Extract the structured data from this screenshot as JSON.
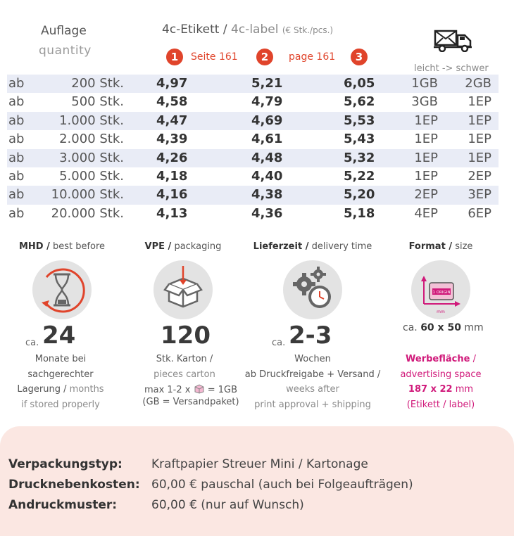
{
  "header": {
    "auflage": "Auflage",
    "quantity": "quantity",
    "label_de": "4c-Etikett",
    "slash": "/",
    "label_en": "4c-label",
    "unit": "(€ Stk./pcs.)",
    "badges": [
      {
        "num": "1",
        "text": "Seite 161"
      },
      {
        "num": "2",
        "text": "page 161"
      },
      {
        "num": "3",
        "text": ""
      }
    ],
    "shipping_caption": "leicht -> schwer",
    "truck_icon": "truck-envelope-icon"
  },
  "table": {
    "rows": [
      {
        "ab": "ab",
        "qty": "200 Stk.",
        "p1": "4,97",
        "p2": "5,21",
        "p3": "6,05",
        "s1": "1GB",
        "s2": "2GB"
      },
      {
        "ab": "ab",
        "qty": "500 Stk.",
        "p1": "4,58",
        "p2": "4,79",
        "p3": "5,62",
        "s1": "3GB",
        "s2": "1EP"
      },
      {
        "ab": "ab",
        "qty": "1.000 Stk.",
        "p1": "4,47",
        "p2": "4,69",
        "p3": "5,53",
        "s1": "1EP",
        "s2": "1EP"
      },
      {
        "ab": "ab",
        "qty": "2.000 Stk.",
        "p1": "4,39",
        "p2": "4,61",
        "p3": "5,43",
        "s1": "1EP",
        "s2": "1EP"
      },
      {
        "ab": "ab",
        "qty": "3.000 Stk.",
        "p1": "4,26",
        "p2": "4,48",
        "p3": "5,32",
        "s1": "1EP",
        "s2": "1EP"
      },
      {
        "ab": "ab",
        "qty": "5.000 Stk.",
        "p1": "4,18",
        "p2": "4,40",
        "p3": "5,22",
        "s1": "1EP",
        "s2": "2EP"
      },
      {
        "ab": "ab",
        "qty": "10.000 Stk.",
        "p1": "4,16",
        "p2": "4,38",
        "p3": "5,20",
        "s1": "2EP",
        "s2": "3EP"
      },
      {
        "ab": "ab",
        "qty": "20.000 Stk.",
        "p1": "4,13",
        "p2": "4,36",
        "p3": "5,18",
        "s1": "4EP",
        "s2": "6EP"
      }
    ]
  },
  "features": {
    "mhd": {
      "title_bold": "MHD /",
      "title": "best before",
      "ca": "ca.",
      "value": "24",
      "line1": "Monate bei",
      "line2": "sachgerechter",
      "line3a": "Lagerung /",
      "line3b": "months",
      "line4": "if stored properly"
    },
    "vpe": {
      "title_bold": "VPE /",
      "title": "packaging",
      "value": "120",
      "line1": "Stk. Karton /",
      "line2": "pieces carton",
      "line3a": "max 1-2 x",
      "line3b": "= 1GB",
      "line4": "(GB = Versandpaket)"
    },
    "lieferzeit": {
      "title_bold": "Lieferzeit /",
      "title": "delivery time",
      "ca": "ca.",
      "value": "2-3",
      "line1": "Wochen",
      "line2": "ab Druckfreigabe + Versand /",
      "line3": "weeks after",
      "line4": "print approval + shipping"
    },
    "format": {
      "title_bold": "Format /",
      "title": "size",
      "size_prefix": "ca.",
      "size": "60 x 50",
      "size_unit": "mm",
      "mm_label": "mm",
      "icon_label": "1 ORIGIN",
      "adv1": "Werbefläche",
      "adv1b": "/",
      "adv2": "advertising space",
      "adv3": "187 x 22",
      "adv3b": "mm",
      "adv4": "(Etikett / label)"
    }
  },
  "info": {
    "rows": [
      {
        "label": "Verpackungstyp:",
        "value": "Kraftpapier Streuer Mini / Kartonage"
      },
      {
        "label": "Drucknebenkosten:",
        "value": "60,00 € pauschal (auch bei Folgeaufträgen)"
      },
      {
        "label": "Andruckmuster:",
        "value": "60,00 € (nur auf Wunsch)"
      }
    ]
  },
  "colors": {
    "accent": "#e0442b",
    "magenta": "#d0197a",
    "row_alt": "#e9ecf6",
    "bottom_bg": "#fbe7e2"
  }
}
